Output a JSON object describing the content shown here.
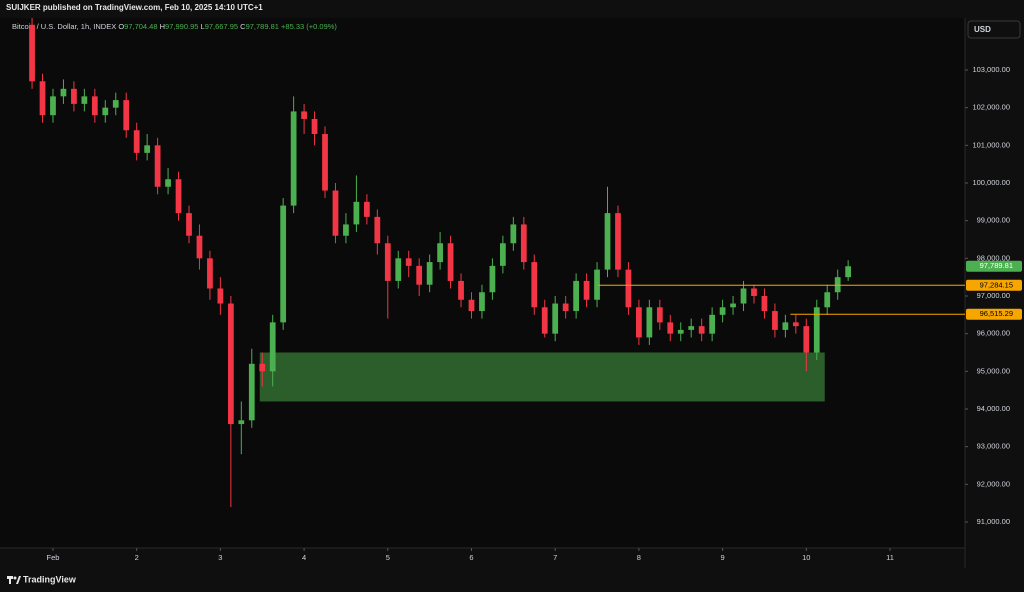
{
  "header": {
    "publisher": "SUIJKER published on TradingView.com, Feb 10, 2025 14:10 UTC+1"
  },
  "footer": {
    "brand": "TradingView"
  },
  "toolbar": {
    "currency": "USD"
  },
  "chart_data": {
    "type": "candlestick",
    "legend": {
      "symbol": "Bitcoin / U.S. Dollar, 1h, INDEX",
      "o_label": "O",
      "o": "97,704.48",
      "h_label": "H",
      "h": "97,990.95",
      "l_label": "L",
      "l": "97,667.95",
      "c_label": "C",
      "c": "97,789.81",
      "change": "+85.33 (+0.09%)"
    },
    "x": [
      -0.25,
      -0.125,
      0,
      0.125,
      0.25,
      0.375,
      0.5,
      0.625,
      0.75,
      0.875,
      1,
      1.125,
      1.25,
      1.375,
      1.5,
      1.625,
      1.75,
      1.875,
      2,
      2.125,
      2.25,
      2.375,
      2.5,
      2.625,
      2.75,
      2.875,
      3,
      3.125,
      3.25,
      3.375,
      3.5,
      3.625,
      3.75,
      3.875,
      4,
      4.125,
      4.25,
      4.375,
      4.5,
      4.625,
      4.75,
      4.875,
      5,
      5.125,
      5.25,
      5.375,
      5.5,
      5.625,
      5.75,
      5.875,
      6,
      6.125,
      6.25,
      6.375,
      6.5,
      6.625,
      6.75,
      6.875,
      7,
      7.125,
      7.25,
      7.375,
      7.5,
      7.625,
      7.75,
      7.875,
      8,
      8.125,
      8.25,
      8.375,
      8.5,
      8.625,
      8.75,
      8.875,
      9,
      9.125,
      9.25,
      9.375,
      9.5
    ],
    "open": [
      104200,
      102700,
      101800,
      102300,
      102500,
      102100,
      102300,
      101800,
      102000,
      102200,
      101400,
      100800,
      101000,
      99900,
      100100,
      99200,
      98600,
      98000,
      97200,
      96800,
      93600,
      93700,
      95200,
      95000,
      96300,
      99400,
      101900,
      101700,
      101300,
      99800,
      98600,
      98900,
      99500,
      99100,
      98400,
      97400,
      98000,
      97800,
      97300,
      97900,
      98400,
      97400,
      96900,
      96600,
      97100,
      97800,
      98400,
      98900,
      97900,
      96700,
      96000,
      96800,
      96600,
      97400,
      96900,
      97700,
      99200,
      97700,
      96700,
      95900,
      96700,
      96300,
      96000,
      96100,
      96200,
      96000,
      96500,
      96700,
      96800,
      97200,
      97000,
      96600,
      96100,
      96300,
      96200,
      95500,
      96700,
      97100,
      97500
    ],
    "high": [
      104380,
      102900,
      102500,
      102750,
      102700,
      102500,
      102500,
      102200,
      102400,
      102400,
      101600,
      101300,
      101200,
      100400,
      100300,
      99400,
      98900,
      98200,
      97500,
      97000,
      94200,
      95600,
      95500,
      96500,
      99600,
      102300,
      102100,
      101900,
      101500,
      100000,
      99200,
      100200,
      99700,
      99300,
      98600,
      98200,
      98200,
      98000,
      98100,
      98700,
      98600,
      97600,
      97100,
      97300,
      98000,
      98600,
      99100,
      99100,
      98100,
      96900,
      97000,
      97000,
      97600,
      97600,
      97900,
      99900,
      99400,
      97900,
      96900,
      96900,
      96900,
      96500,
      96300,
      96400,
      96400,
      96700,
      96900,
      97000,
      97400,
      97300,
      97200,
      96800,
      96500,
      96500,
      96400,
      96900,
      97300,
      97700,
      97950
    ],
    "low": [
      102500,
      101600,
      101600,
      102100,
      101900,
      101900,
      101600,
      101600,
      101800,
      101200,
      100600,
      100600,
      99700,
      99700,
      99000,
      98400,
      97700,
      96900,
      96500,
      91400,
      92800,
      93500,
      94600,
      94600,
      96100,
      99200,
      101300,
      101000,
      99600,
      98400,
      98400,
      98700,
      98900,
      98100,
      96400,
      97200,
      97500,
      97000,
      97100,
      97700,
      97200,
      96700,
      96400,
      96400,
      96900,
      97600,
      98200,
      97700,
      96500,
      95900,
      95800,
      96400,
      96400,
      96700,
      96700,
      97500,
      97500,
      96500,
      95700,
      95700,
      96100,
      95800,
      95800,
      95900,
      95800,
      95800,
      96300,
      96500,
      96600,
      96800,
      96400,
      95900,
      95900,
      96000,
      95000,
      95300,
      96500,
      96900,
      97400
    ],
    "close": [
      102700,
      101800,
      102300,
      102500,
      102100,
      102300,
      101800,
      102000,
      102200,
      101400,
      100800,
      101000,
      99900,
      100100,
      99200,
      98600,
      98000,
      97200,
      96800,
      93600,
      93700,
      95200,
      95000,
      96300,
      99400,
      101900,
      101700,
      101300,
      99800,
      98600,
      98900,
      99500,
      99100,
      98400,
      97400,
      98000,
      97800,
      97300,
      97900,
      98400,
      97400,
      96900,
      96600,
      97100,
      97800,
      98400,
      98900,
      97900,
      96700,
      96000,
      96800,
      96600,
      97400,
      96900,
      97700,
      99200,
      97700,
      96700,
      95900,
      96700,
      96300,
      96000,
      96100,
      96200,
      96000,
      96500,
      96700,
      96800,
      97200,
      97000,
      96600,
      96100,
      96300,
      96200,
      95500,
      96700,
      97100,
      97500,
      97789.81
    ],
    "up_color": "#4caf50",
    "down_color": "#f23645",
    "xlim": [
      -0.633,
      10.896
    ],
    "ylim": [
      90310,
      104380
    ],
    "xticks": [
      {
        "value": 0,
        "label": "Feb"
      },
      {
        "value": 1,
        "label": "2"
      },
      {
        "value": 2,
        "label": "3"
      },
      {
        "value": 3,
        "label": "4"
      },
      {
        "value": 4,
        "label": "5"
      },
      {
        "value": 5,
        "label": "6"
      },
      {
        "value": 6,
        "label": "7"
      },
      {
        "value": 7,
        "label": "8"
      },
      {
        "value": 8,
        "label": "9"
      },
      {
        "value": 9,
        "label": "10"
      },
      {
        "value": 10,
        "label": "11"
      }
    ],
    "yticks": [
      {
        "value": 91000,
        "label": "91,000.00"
      },
      {
        "value": 92000,
        "label": "92,000.00"
      },
      {
        "value": 93000,
        "label": "93,000.00"
      },
      {
        "value": 94000,
        "label": "94,000.00"
      },
      {
        "value": 95000,
        "label": "95,000.00"
      },
      {
        "value": 96000,
        "label": "96,000.00"
      },
      {
        "value": 97000,
        "label": "97,000.00"
      },
      {
        "value": 98000,
        "label": "98,000.00"
      },
      {
        "value": 99000,
        "label": "99,000.00"
      },
      {
        "value": 100000,
        "label": "100,000.00"
      },
      {
        "value": 101000,
        "label": "101,000.00"
      },
      {
        "value": 102000,
        "label": "102,000.00"
      },
      {
        "value": 103000,
        "label": "103,000.00"
      }
    ],
    "grid": false,
    "zone": {
      "x0": 2.47,
      "x1": 9.22,
      "y0": 94200,
      "y1": 95500,
      "color": "#2b5e2b"
    },
    "hlines": [
      {
        "value": 97284.15,
        "label": "97,284.15",
        "start": 6.51,
        "color": "#f7a600"
      },
      {
        "value": 96515.29,
        "label": "96,515.29",
        "start": 8.81,
        "color": "#f7a600"
      }
    ],
    "last_price": {
      "value": 97789.81,
      "label": "97,789.81",
      "color": "#4caf50"
    }
  }
}
